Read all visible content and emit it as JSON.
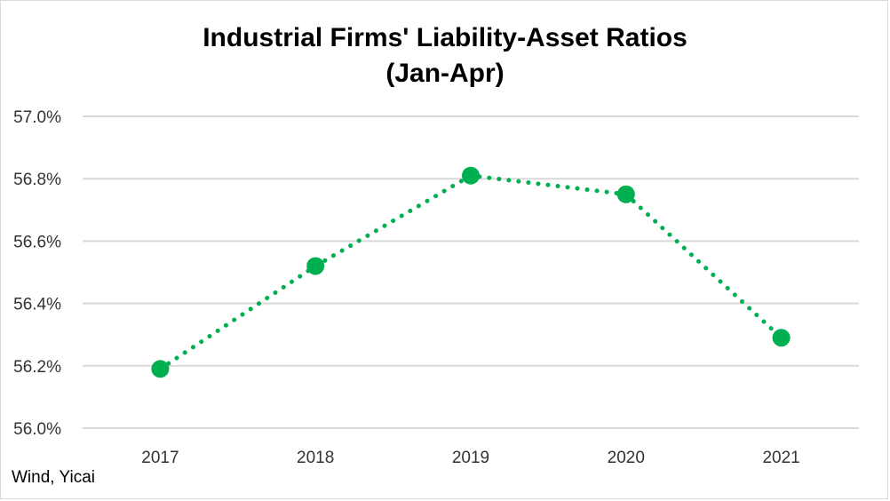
{
  "chart_data": {
    "type": "line",
    "title": "Industrial Firms' Liability-Asset Ratios",
    "subtitle": "(Jan-Apr)",
    "categories": [
      "2017",
      "2018",
      "2019",
      "2020",
      "2021"
    ],
    "values": [
      56.19,
      56.52,
      56.81,
      56.75,
      56.29
    ],
    "ylim": [
      56.0,
      57.0
    ],
    "yticks": [
      "56.0%",
      "56.2%",
      "56.4%",
      "56.6%",
      "56.8%",
      "57.0%"
    ],
    "xlabel": "",
    "ylabel": "",
    "grid": true,
    "line_style": "dotted",
    "color": "#00b050",
    "source": "Wind, Yicai"
  }
}
